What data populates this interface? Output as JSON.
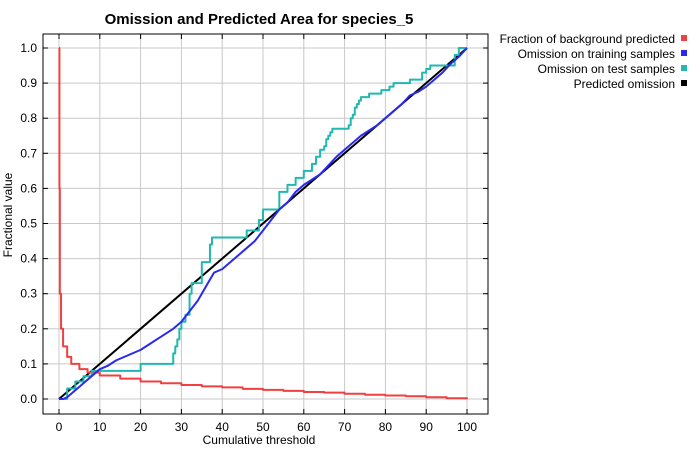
{
  "chart_data": {
    "type": "line",
    "title": "Omission and Predicted Area for species_5",
    "xlabel": "Cumulative threshold",
    "ylabel": "Fractional value",
    "xlim": [
      0,
      100
    ],
    "ylim": [
      0,
      1
    ],
    "x_ticks": [
      "0",
      "10",
      "20",
      "30",
      "40",
      "50",
      "60",
      "70",
      "80",
      "90",
      "100"
    ],
    "y_ticks": [
      "0.0",
      "0.1",
      "0.2",
      "0.3",
      "0.4",
      "0.5",
      "0.6",
      "0.7",
      "0.8",
      "0.9",
      "1.0"
    ],
    "grid": true,
    "legend_position": "outside-right",
    "series": [
      {
        "name": "Fraction of background predicted",
        "color": "#f04040",
        "shape": "step",
        "x": [
          0,
          0.1,
          0.2,
          0.5,
          1,
          2,
          3,
          5,
          7,
          10,
          15,
          20,
          25,
          30,
          35,
          40,
          45,
          50,
          55,
          60,
          65,
          70,
          75,
          80,
          85,
          90,
          95,
          100
        ],
        "y": [
          1.0,
          0.6,
          0.3,
          0.2,
          0.15,
          0.12,
          0.1,
          0.085,
          0.075,
          0.067,
          0.058,
          0.05,
          0.045,
          0.04,
          0.036,
          0.033,
          0.029,
          0.026,
          0.023,
          0.02,
          0.018,
          0.015,
          0.012,
          0.01,
          0.008,
          0.005,
          0.002,
          0.0
        ]
      },
      {
        "name": "Omission on training samples",
        "color": "#2a2aef",
        "shape": "line",
        "x": [
          0,
          1,
          2,
          3,
          4,
          5,
          6,
          7,
          8,
          9,
          10,
          12,
          14,
          16,
          18,
          20,
          22,
          24,
          26,
          28,
          30,
          32,
          34,
          36,
          38,
          40,
          42,
          44,
          46,
          48,
          50,
          52,
          54,
          56,
          58,
          60,
          62,
          64,
          66,
          68,
          70,
          72,
          74,
          76,
          78,
          80,
          82,
          84,
          86,
          88,
          90,
          92,
          94,
          96,
          98,
          100
        ],
        "y": [
          0.0,
          0.0,
          0.005,
          0.015,
          0.025,
          0.035,
          0.045,
          0.055,
          0.065,
          0.075,
          0.085,
          0.095,
          0.11,
          0.12,
          0.13,
          0.14,
          0.155,
          0.17,
          0.185,
          0.2,
          0.22,
          0.25,
          0.28,
          0.32,
          0.36,
          0.37,
          0.39,
          0.41,
          0.43,
          0.45,
          0.48,
          0.51,
          0.54,
          0.56,
          0.59,
          0.61,
          0.625,
          0.64,
          0.665,
          0.69,
          0.71,
          0.73,
          0.75,
          0.765,
          0.78,
          0.8,
          0.82,
          0.84,
          0.865,
          0.875,
          0.89,
          0.91,
          0.93,
          0.955,
          0.975,
          1.0
        ]
      },
      {
        "name": "Omission on test samples",
        "color": "#20b8b0",
        "shape": "step",
        "x": [
          0,
          2,
          4,
          6,
          8,
          20,
          28,
          28.5,
          29,
          29.5,
          30,
          31,
          32,
          32.5,
          35,
          37,
          37.5,
          38,
          46,
          49,
          50,
          54,
          56,
          58,
          60,
          62,
          63,
          64,
          65,
          65.5,
          66,
          66.5,
          67,
          71,
          71.5,
          72,
          72.5,
          73,
          73.5,
          74,
          76,
          77,
          79,
          81,
          82,
          86,
          89,
          90,
          91,
          97,
          98,
          100
        ],
        "y": [
          0.0,
          0.03,
          0.05,
          0.065,
          0.08,
          0.1,
          0.13,
          0.15,
          0.17,
          0.2,
          0.22,
          0.24,
          0.3,
          0.33,
          0.39,
          0.44,
          0.46,
          0.46,
          0.48,
          0.51,
          0.54,
          0.59,
          0.61,
          0.63,
          0.65,
          0.67,
          0.69,
          0.71,
          0.72,
          0.74,
          0.75,
          0.76,
          0.77,
          0.78,
          0.8,
          0.81,
          0.83,
          0.84,
          0.85,
          0.86,
          0.87,
          0.87,
          0.88,
          0.89,
          0.9,
          0.91,
          0.93,
          0.94,
          0.95,
          0.98,
          1.0,
          1.0
        ]
      },
      {
        "name": "Predicted omission",
        "color": "#000000",
        "shape": "line",
        "x": [
          0,
          100
        ],
        "y": [
          0.0,
          1.0
        ]
      }
    ]
  }
}
